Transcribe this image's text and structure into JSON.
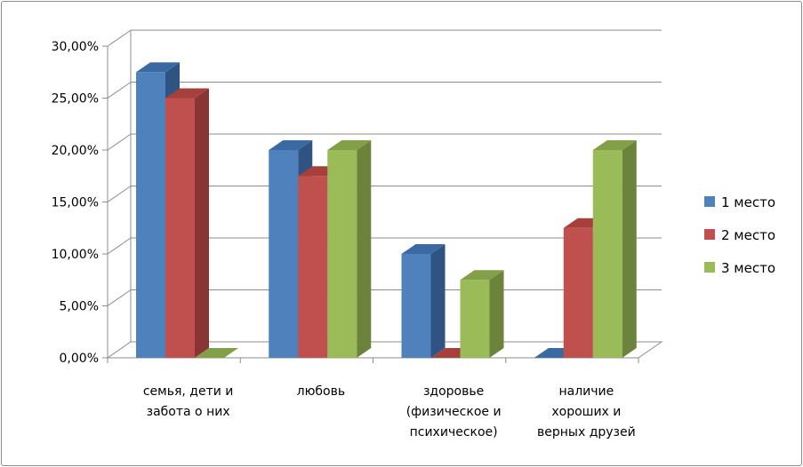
{
  "chart_data": {
    "type": "bar",
    "categories": [
      [
        "семья, дети и",
        "забота о них"
      ],
      [
        "любовь"
      ],
      [
        "здоровье",
        "(физическое и",
        "психическое)"
      ],
      [
        "наличие",
        "хороших и",
        "верных друзей"
      ]
    ],
    "series": [
      {
        "name": "1 место",
        "values": [
          0.275,
          0.2,
          0.1,
          0.0
        ]
      },
      {
        "name": "2 место",
        "values": [
          0.25,
          0.175,
          0.0,
          0.125
        ]
      },
      {
        "name": "3 место",
        "values": [
          0.0,
          0.2,
          0.075,
          0.2
        ]
      }
    ],
    "yticks": [
      "0,00%",
      "5,00%",
      "10,00%",
      "15,00%",
      "20,00%",
      "25,00%",
      "30,00%"
    ],
    "ylim": [
      0,
      0.3
    ],
    "grid": true,
    "legend_position": "right",
    "colors": {
      "series": [
        "#4f81bd",
        "#c0504d",
        "#9bbb59"
      ],
      "series_side": [
        "#2f5483",
        "#883533",
        "#6c833c"
      ],
      "series_top": [
        "#3b6aa3",
        "#a6403d",
        "#82a048"
      ],
      "grid": "#8c8c8c"
    }
  }
}
